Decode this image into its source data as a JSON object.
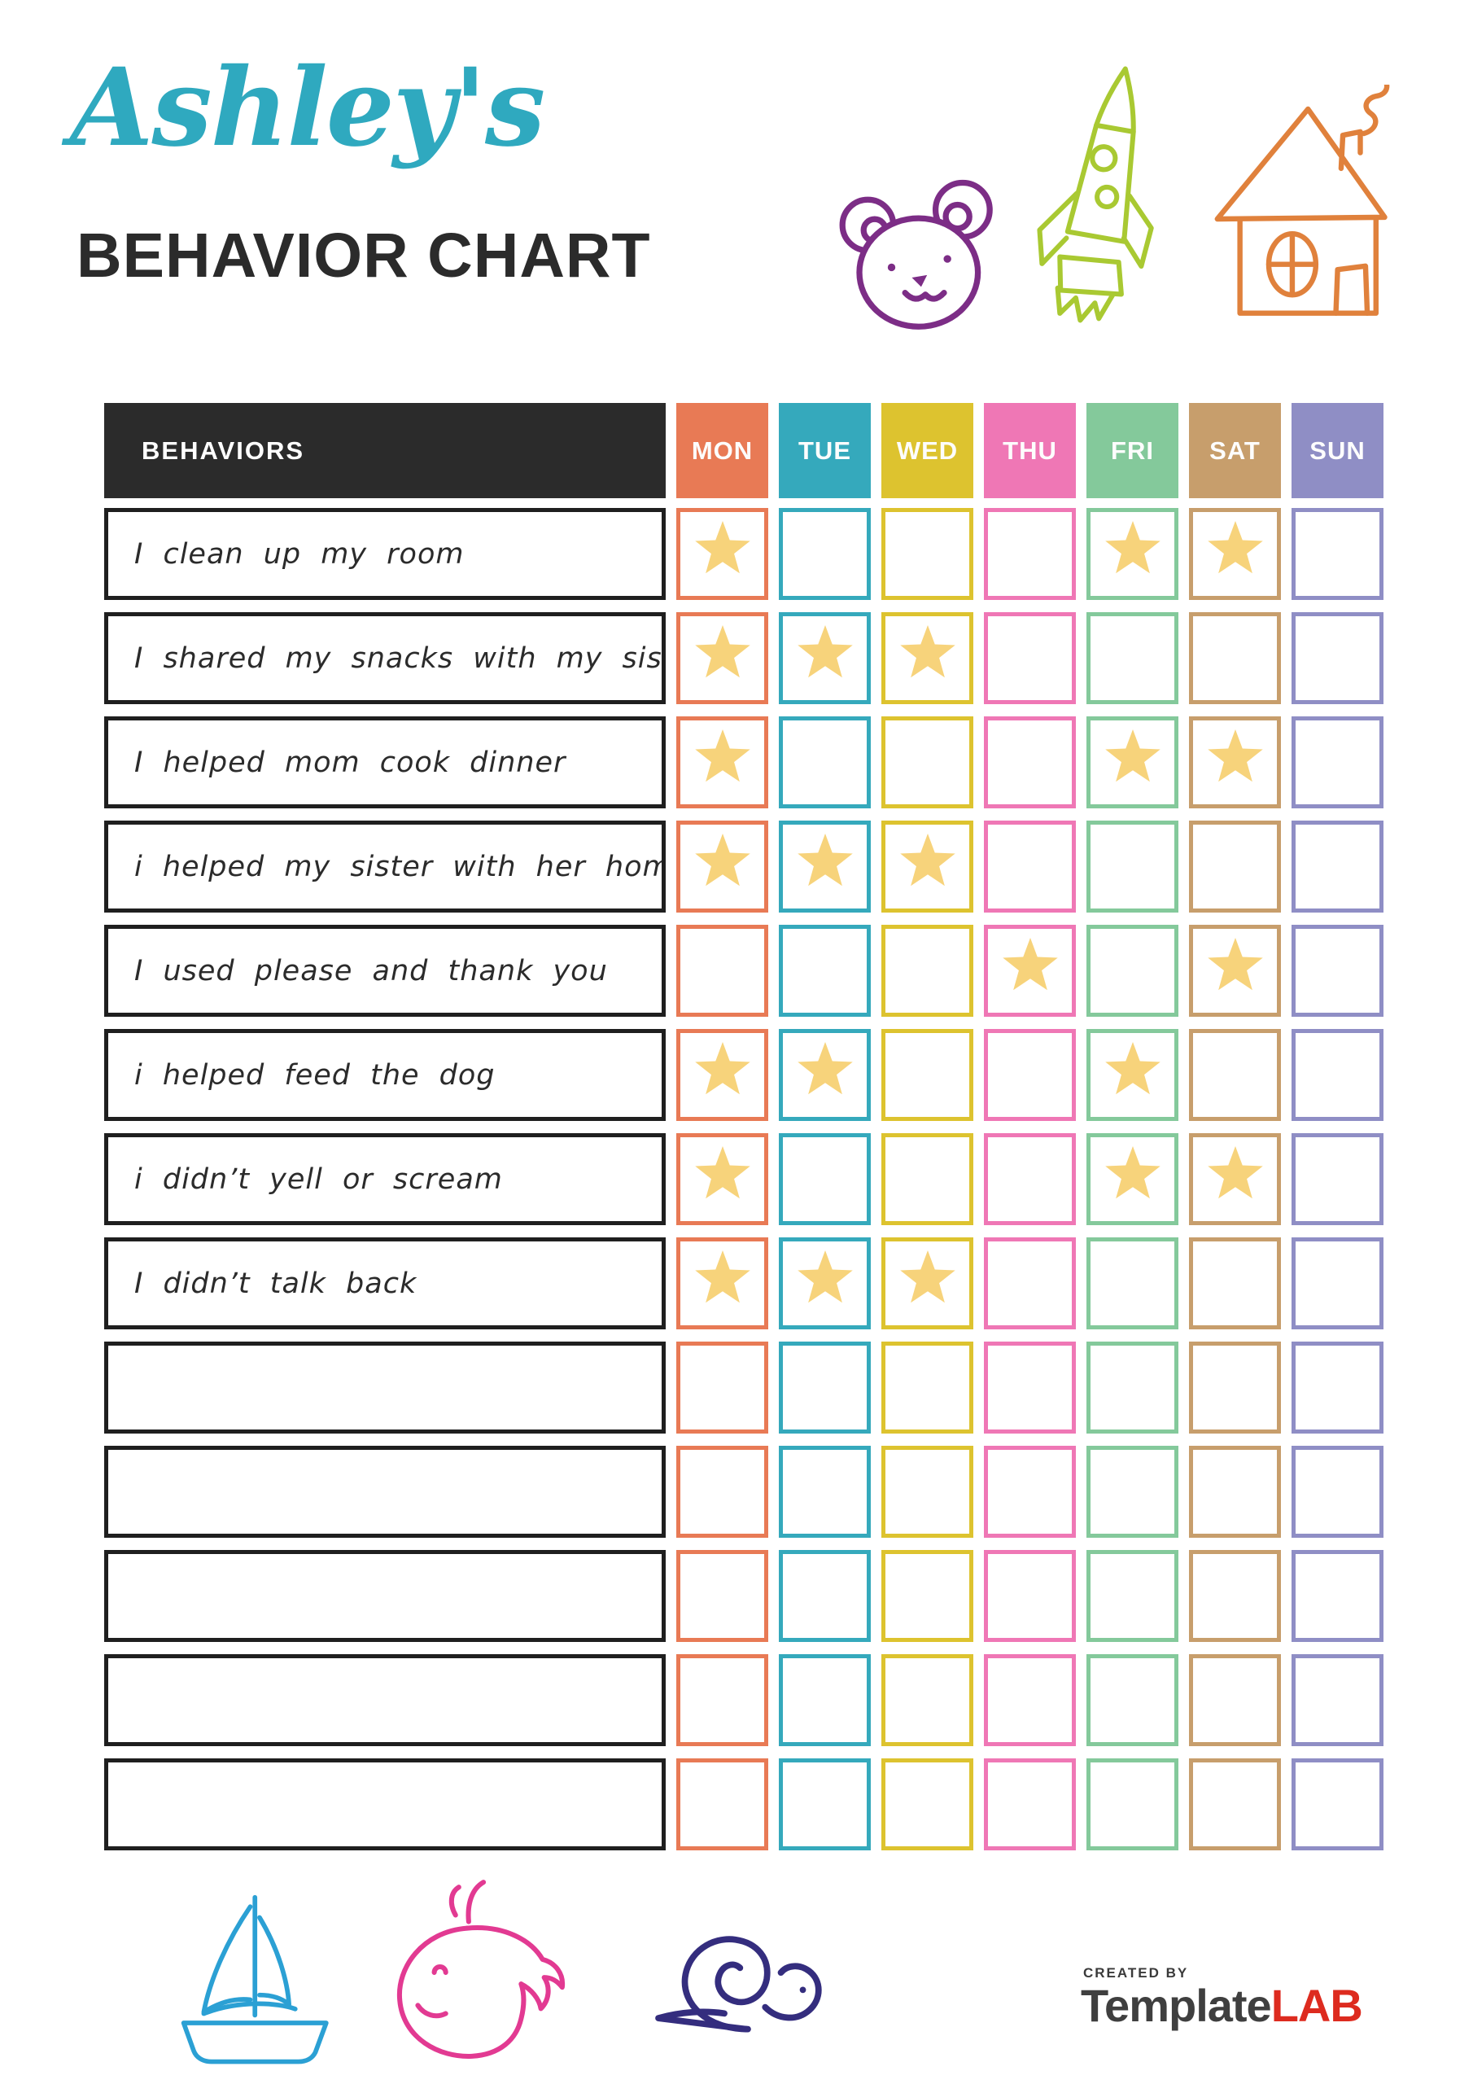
{
  "header": {
    "name_script": "Ashley's",
    "title": "BEHAVIOR CHART",
    "doodles": [
      "bear-icon",
      "rocket-icon",
      "house-icon"
    ]
  },
  "table": {
    "behaviors_label": "BEHAVIORS",
    "header_bg": "#2B2B2B",
    "star_color": "#F7D37B",
    "days": [
      {
        "key": "mon",
        "label": "MON",
        "color": "#E87A55"
      },
      {
        "key": "tue",
        "label": "TUE",
        "color": "#35A9BC"
      },
      {
        "key": "wed",
        "label": "WED",
        "color": "#DDC32F"
      },
      {
        "key": "thu",
        "label": "THU",
        "color": "#EF77B5"
      },
      {
        "key": "fri",
        "label": "FRI",
        "color": "#84C99B"
      },
      {
        "key": "sat",
        "label": "SAT",
        "color": "#C79E6C"
      },
      {
        "key": "sun",
        "label": "SUN",
        "color": "#8F8EC5"
      }
    ],
    "rows": [
      {
        "behavior": "I clean up my room",
        "stars": [
          "mon",
          "fri",
          "sat"
        ]
      },
      {
        "behavior": "I shared my snacks with my sister",
        "stars": [
          "mon",
          "tue",
          "wed"
        ]
      },
      {
        "behavior": "I helped mom cook dinner",
        "stars": [
          "mon",
          "fri",
          "sat"
        ]
      },
      {
        "behavior": "i helped my sister with her homework",
        "stars": [
          "mon",
          "tue",
          "wed"
        ]
      },
      {
        "behavior": "I used please and thank you",
        "stars": [
          "thu",
          "sat"
        ]
      },
      {
        "behavior": "i helped feed the dog",
        "stars": [
          "mon",
          "tue",
          "fri"
        ]
      },
      {
        "behavior": "i didn’t yell or scream",
        "stars": [
          "mon",
          "fri",
          "sat"
        ]
      },
      {
        "behavior": "I didn’t talk back",
        "stars": [
          "mon",
          "tue",
          "wed"
        ]
      },
      {
        "behavior": "",
        "stars": []
      },
      {
        "behavior": "",
        "stars": []
      },
      {
        "behavior": "",
        "stars": []
      },
      {
        "behavior": "",
        "stars": []
      },
      {
        "behavior": "",
        "stars": []
      }
    ]
  },
  "footer": {
    "doodles": [
      "sailboat-icon",
      "whale-icon",
      "snail-icon"
    ],
    "logo": {
      "created_by": "CREATED BY",
      "brand_dark": "Template",
      "brand_red": "LAB"
    }
  },
  "colors": {
    "title_script": "#2FA9BF",
    "title_text": "#2B2B2B",
    "bear": "#7C2D86",
    "rocket": "#A9C932",
    "house": "#E0813C",
    "sailboat": "#2BA0D4",
    "whale": "#E23A92",
    "snail": "#342D7E",
    "logo_dark": "#3F3F3F",
    "logo_red": "#DD2B1F"
  }
}
